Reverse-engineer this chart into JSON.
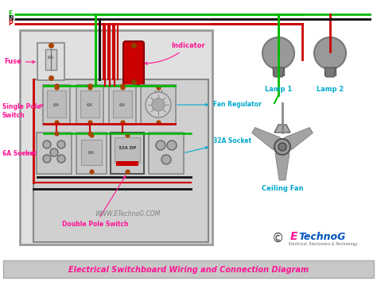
{
  "title": "Electrical Switchboard Wiring and Connection Diagram",
  "title_color": "#FF1493",
  "title_bg": "#C8C8C8",
  "bg_color": "#FFFFFF",
  "watermark": "WWW.ETechnoG.COM",
  "brand_E_color": "#FF1493",
  "brand_rest_color": "#0055BB",
  "brand_sub": "Electrical, Electronics & Technology",
  "labels": {
    "fuse": "Fuse",
    "single_pole": "Single Pole\nSwitch",
    "socket_6a": "6A Socket",
    "double_pole": "Double Pole Switch",
    "indicator": "Indicator",
    "fan_regulator": "Fan Regulator",
    "socket_32a": "32A Socket",
    "ceiling_fan": "Ceiling Fan",
    "lamp1": "Lamp 1",
    "lamp2": "Lamp 2",
    "E": "E",
    "N": "N",
    "P": "P"
  },
  "wire_colors": {
    "earth": "#00BB00",
    "neutral": "#111111",
    "phase": "#CC0000"
  },
  "outer_panel_bg": "#E0E0E0",
  "inner_panel_bg": "#D0D0D0",
  "label_color": "#FF1493",
  "indicator_color": "#CC0000",
  "switch_color": "#C8C8C8",
  "cyan_color": "#00AACC",
  "dot_color": "#AA4400"
}
